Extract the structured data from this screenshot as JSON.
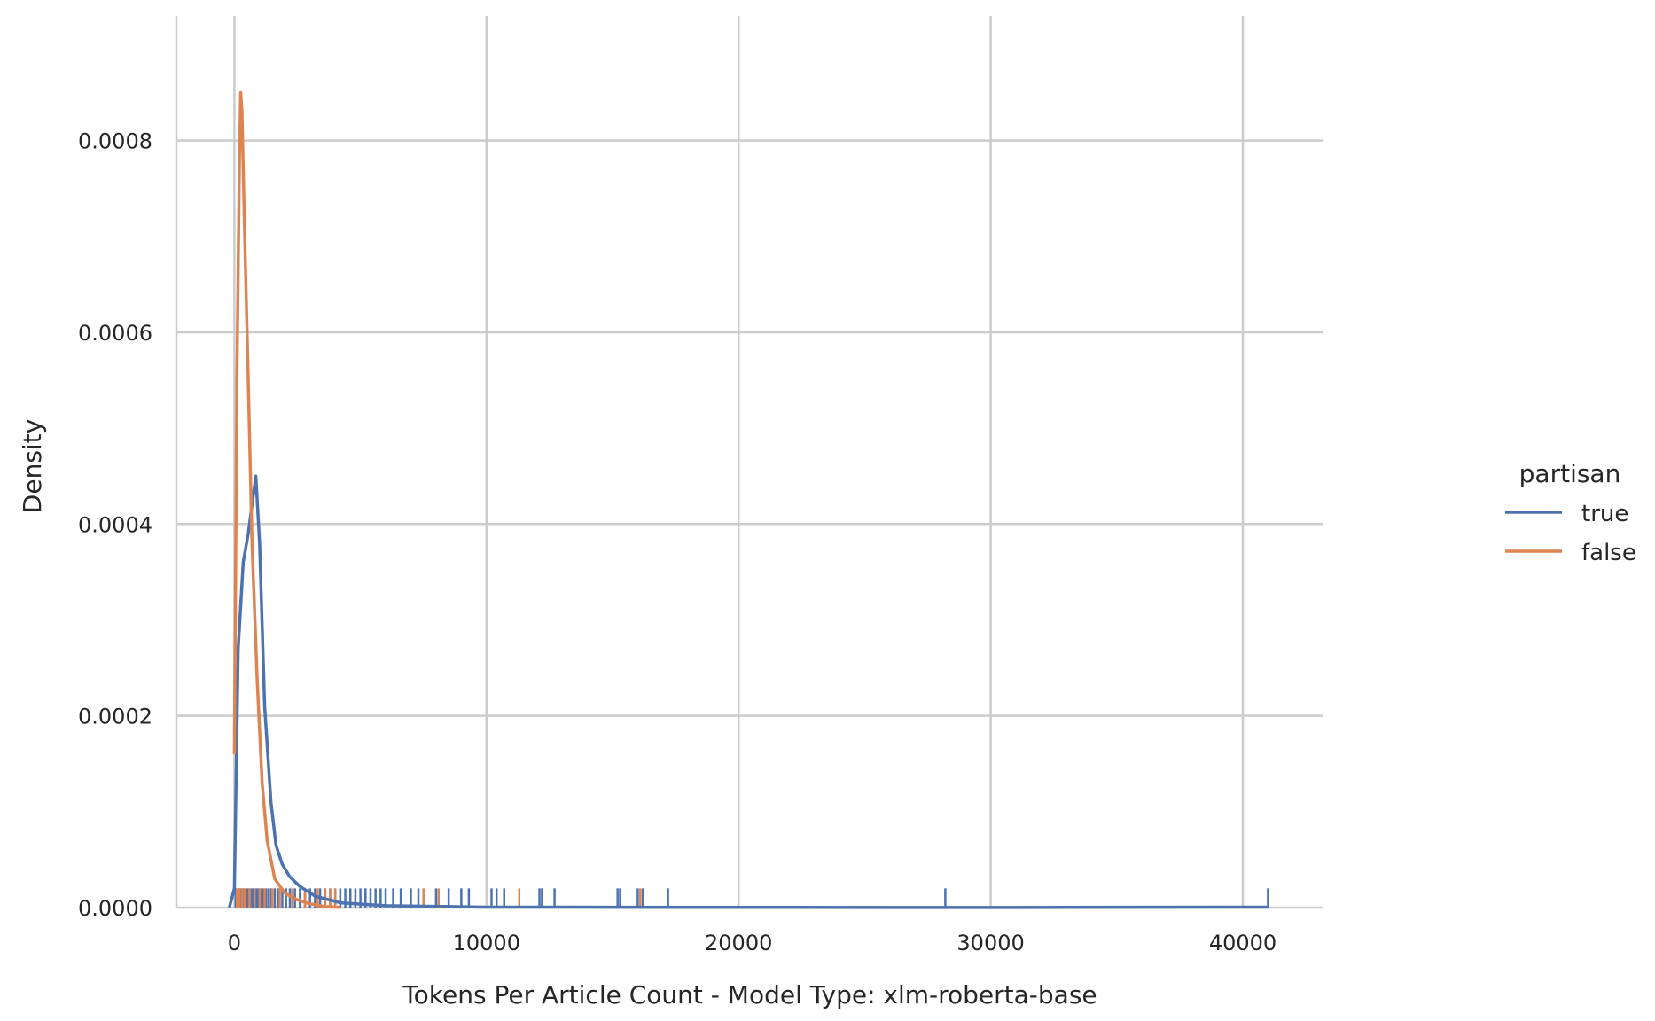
{
  "chart_data": {
    "type": "line",
    "subtype": "kde-with-rug",
    "xlabel": "Tokens Per Article Count - Model Type: xlm-roberta-base",
    "ylabel": "Density",
    "xlim": [
      -2300,
      43200
    ],
    "ylim": [
      0,
      0.00093
    ],
    "xticks": [
      0,
      10000,
      20000,
      30000,
      40000
    ],
    "xtick_labels": [
      "0",
      "10000",
      "20000",
      "30000",
      "40000"
    ],
    "yticks": [
      0,
      0.0002,
      0.0004,
      0.0006,
      0.0008
    ],
    "ytick_labels": [
      "0.0000",
      "0.0002",
      "0.0004",
      "0.0006",
      "0.0008"
    ],
    "grid": true,
    "legend": {
      "title": "partisan",
      "placement": "right"
    },
    "series": [
      {
        "name": "true",
        "color": "#4c72b0",
        "x": [
          -200,
          0,
          150,
          350,
          550,
          750,
          850,
          1000,
          1200,
          1450,
          1650,
          1900,
          2200,
          2600,
          3200,
          4200,
          6000,
          10000,
          20000,
          30000,
          41000
        ],
        "y": [
          0,
          2e-05,
          0.00027,
          0.00036,
          0.00039,
          0.00043,
          0.00045,
          0.00038,
          0.00021,
          0.00011,
          6.5e-05,
          4.5e-05,
          3.2e-05,
          2.2e-05,
          1.2e-05,
          5e-06,
          2e-06,
          5e-07,
          2e-07,
          1e-07,
          5e-07
        ],
        "rug": [
          50,
          100,
          180,
          250,
          320,
          400,
          480,
          560,
          640,
          720,
          800,
          880,
          960,
          1050,
          1150,
          1250,
          1350,
          1450,
          1600,
          1750,
          1900,
          2050,
          2200,
          2400,
          2600,
          2800,
          3000,
          3200,
          3400,
          3600,
          3800,
          4000,
          4200,
          4400,
          4600,
          4800,
          5000,
          5200,
          5400,
          5600,
          5800,
          6000,
          6300,
          6600,
          7000,
          7300,
          8000,
          8500,
          9000,
          9300,
          10200,
          10400,
          10700,
          12100,
          12200,
          12700,
          15200,
          15300,
          16000,
          16200,
          17200,
          28200,
          41000
        ]
      },
      {
        "name": "false",
        "color": "#dd8452",
        "x": [
          0,
          100,
          200,
          250,
          300,
          400,
          550,
          700,
          900,
          1100,
          1300,
          1600,
          2000,
          2500,
          3000,
          3600,
          4200
        ],
        "y": [
          0.00016,
          0.00055,
          0.00078,
          0.00085,
          0.00083,
          0.00071,
          0.00055,
          0.00038,
          0.00024,
          0.00013,
          7e-05,
          3e-05,
          1.5e-05,
          8e-06,
          4e-06,
          1e-06,
          2e-07
        ],
        "rug": [
          100,
          200,
          300,
          400,
          600,
          800,
          1000,
          1200,
          1500,
          1800,
          2300,
          2800,
          3300,
          3600,
          3800,
          4000,
          7500,
          8100,
          11300,
          16100
        ]
      }
    ]
  }
}
